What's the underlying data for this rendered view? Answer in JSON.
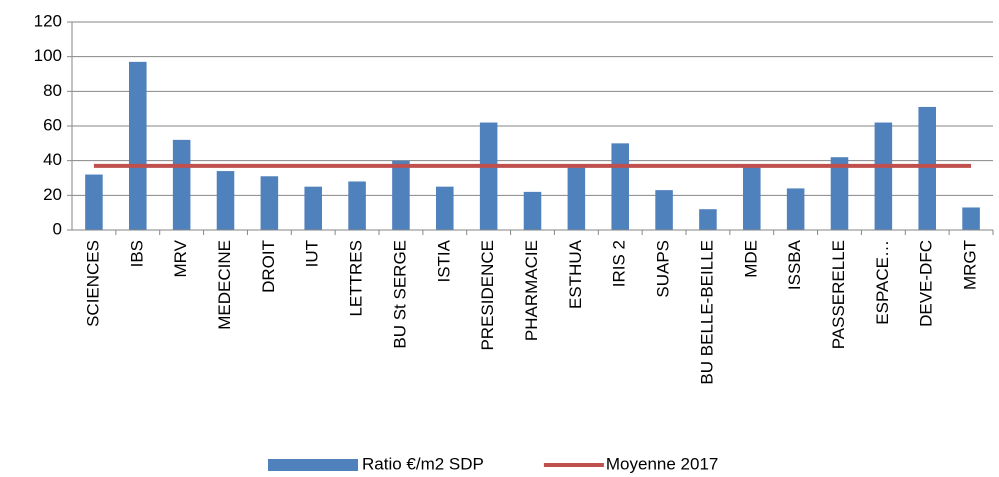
{
  "chart_data": {
    "type": "bar",
    "categories": [
      "SCIENCES",
      "IBS",
      "MRV",
      "MEDECINE",
      "DROIT",
      "IUT",
      "LETTRES",
      "BU St SERGE",
      "ISTIA",
      "PRESIDENCE",
      "PHARMACIE",
      "ESTHUA",
      "IRIS 2",
      "SUAPS",
      "BU BELLE-BEILLE",
      "MDE",
      "ISSBA",
      "PASSERELLE",
      "ESPACE…",
      "DEVE-DFC",
      "MRGT"
    ],
    "series": [
      {
        "name": "Ratio €/m2 SDP",
        "type": "bar",
        "color": "#4f81bd",
        "values": [
          32,
          97,
          52,
          34,
          31,
          25,
          28,
          40,
          25,
          62,
          22,
          36,
          50,
          23,
          12,
          37,
          24,
          42,
          62,
          71,
          13
        ]
      },
      {
        "name": "Moyenne 2017",
        "type": "line",
        "color": "#c0504d",
        "values": [
          37,
          37,
          37,
          37,
          37,
          37,
          37,
          37,
          37,
          37,
          37,
          37,
          37,
          37,
          37,
          37,
          37,
          37,
          37,
          37,
          37
        ]
      }
    ],
    "ylim": [
      0,
      120
    ],
    "yticks": [
      0,
      20,
      40,
      60,
      80,
      100,
      120
    ],
    "grid": true,
    "legend": "bottom"
  }
}
